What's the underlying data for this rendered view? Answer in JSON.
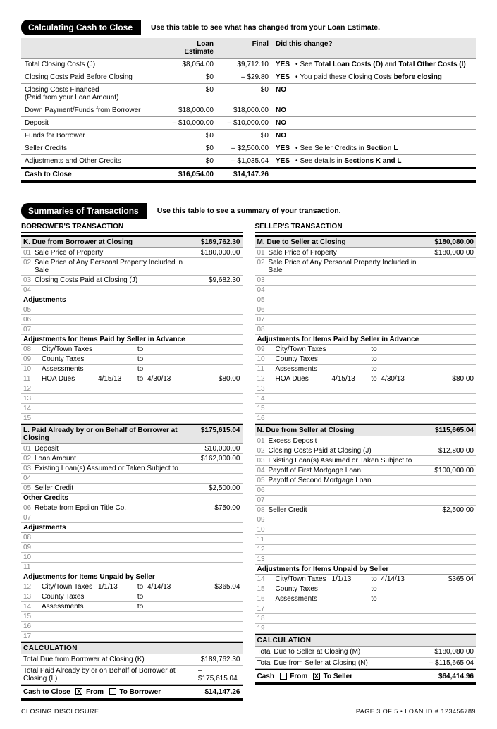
{
  "section1": {
    "title": "Calculating Cash to Close",
    "subtitle": "Use this table to see what has changed from your Loan Estimate.",
    "headers": {
      "c1": "Loan Estimate",
      "c2": "Final",
      "c3": "Did this change?"
    },
    "rows": [
      {
        "label": "Total Closing Costs (J)",
        "le": "$8,054.00",
        "fin": "$9,712.10",
        "yn": "YES",
        "note": "See Total Loan Costs (D) and Total Other Costs (I)",
        "bold_note": true
      },
      {
        "label": "Closing Costs Paid Before Closing",
        "le": "$0",
        "fin": "– $29.80",
        "yn": "YES",
        "note": "You paid these Closing Costs before closing",
        "bold_before": true
      },
      {
        "label": "Closing Costs Financed\n(Paid from your Loan Amount)",
        "le": "$0",
        "fin": "$0",
        "yn": "NO",
        "note": ""
      },
      {
        "label": "Down Payment/Funds from Borrower",
        "le": "$18,000.00",
        "fin": "$18,000.00",
        "yn": "NO",
        "note": ""
      },
      {
        "label": "Deposit",
        "le": "– $10,000.00",
        "fin": "– $10,000.00",
        "yn": "NO",
        "note": ""
      },
      {
        "label": "Funds for Borrower",
        "le": "$0",
        "fin": "$0",
        "yn": "NO",
        "note": ""
      },
      {
        "label": "Seller Credits",
        "le": "$0",
        "fin": "– $2,500.00",
        "yn": "YES",
        "note": "See Seller Credits in Section L",
        "bold_section": true
      },
      {
        "label": "Adjustments and Other Credits",
        "le": "$0",
        "fin": "– $1,035.04",
        "yn": "YES",
        "note": "See details in Sections K and L",
        "bold_sections": true
      }
    ],
    "total": {
      "label": "Cash to Close",
      "le": "$16,054.00",
      "fin": "$14,147.26"
    }
  },
  "section2": {
    "title": "Summaries of Transactions",
    "subtitle": "Use this table to see a summary of your transaction.",
    "borrower": {
      "title": "BORROWER'S TRANSACTION",
      "K": {
        "title": "K. Due from Borrower at Closing",
        "amt": "$189,762.30",
        "lines": [
          {
            "n": "01",
            "lbl": "Sale Price of Property",
            "amt": "$180,000.00"
          },
          {
            "n": "02",
            "lbl": "Sale Price of Any Personal Property Included in Sale",
            "amt": ""
          },
          {
            "n": "03",
            "lbl": "Closing Costs Paid at Closing (J)",
            "amt": "$9,682.30"
          },
          {
            "n": "04",
            "lbl": "",
            "amt": ""
          }
        ],
        "adj_title": "Adjustments",
        "adj": [
          {
            "n": "05"
          },
          {
            "n": "06"
          },
          {
            "n": "07"
          }
        ],
        "adv_title": "Adjustments for Items Paid by Seller in Advance",
        "adv": [
          {
            "n": "08",
            "lbl": "City/Town Taxes",
            "d1": "",
            "to": "to",
            "d2": "",
            "amt": ""
          },
          {
            "n": "09",
            "lbl": "County Taxes",
            "d1": "",
            "to": "to",
            "d2": "",
            "amt": ""
          },
          {
            "n": "10",
            "lbl": "Assessments",
            "d1": "",
            "to": "to",
            "d2": "",
            "amt": ""
          },
          {
            "n": "11",
            "lbl": "HOA Dues",
            "d1": "4/15/13",
            "to": "to",
            "d2": "4/30/13",
            "amt": "$80.00"
          },
          {
            "n": "12"
          },
          {
            "n": "13"
          },
          {
            "n": "14"
          },
          {
            "n": "15"
          }
        ]
      },
      "L": {
        "title": "L. Paid Already by or on Behalf of Borrower at Closing",
        "amt": "$175,615.04",
        "lines": [
          {
            "n": "01",
            "lbl": "Deposit",
            "amt": "$10,000.00"
          },
          {
            "n": "02",
            "lbl": "Loan Amount",
            "amt": "$162,000.00"
          },
          {
            "n": "03",
            "lbl": "Existing Loan(s) Assumed or Taken Subject to",
            "amt": ""
          },
          {
            "n": "04",
            "lbl": "",
            "amt": ""
          },
          {
            "n": "05",
            "lbl": "Seller Credit",
            "amt": "$2,500.00"
          }
        ],
        "other_title": "Other Credits",
        "other": [
          {
            "n": "06",
            "lbl": "Rebate from Epsilon Title Co.",
            "amt": "$750.00"
          },
          {
            "n": "07",
            "lbl": "",
            "amt": ""
          }
        ],
        "adj_title": "Adjustments",
        "adj": [
          {
            "n": "08"
          },
          {
            "n": "09"
          },
          {
            "n": "10"
          },
          {
            "n": "11"
          }
        ],
        "unp_title": "Adjustments for Items Unpaid by Seller",
        "unp": [
          {
            "n": "12",
            "lbl": "City/Town Taxes",
            "d1": "1/1/13",
            "to": "to",
            "d2": "4/14/13",
            "amt": "$365.04"
          },
          {
            "n": "13",
            "lbl": "County Taxes",
            "d1": "",
            "to": "to",
            "d2": "",
            "amt": ""
          },
          {
            "n": "14",
            "lbl": "Assessments",
            "d1": "",
            "to": "to",
            "d2": "",
            "amt": ""
          },
          {
            "n": "15"
          },
          {
            "n": "16"
          },
          {
            "n": "17"
          }
        ]
      },
      "calc": {
        "title": "CALCULATION",
        "r1": {
          "lbl": "Total Due from Borrower at Closing (K)",
          "amt": "$189,762.30"
        },
        "r2": {
          "lbl": "Total Paid Already by or on Behalf of Borrower at Closing (L)",
          "amt": "– $175,615.04"
        },
        "total_lbl": "Cash to Close",
        "from": "From",
        "to": "To Borrower",
        "amt": "$14,147.26",
        "from_checked": true
      }
    },
    "seller": {
      "title": "SELLER'S TRANSACTION",
      "M": {
        "title": "M. Due to Seller at Closing",
        "amt": "$180,080.00",
        "lines": [
          {
            "n": "01",
            "lbl": "Sale Price of Property",
            "amt": "$180,000.00"
          },
          {
            "n": "02",
            "lbl": "Sale Price of Any Personal Property Included in Sale",
            "amt": ""
          },
          {
            "n": "03",
            "lbl": "",
            "amt": ""
          },
          {
            "n": "04",
            "lbl": "",
            "amt": ""
          },
          {
            "n": "05",
            "lbl": "",
            "amt": ""
          },
          {
            "n": "06",
            "lbl": "",
            "amt": ""
          },
          {
            "n": "07",
            "lbl": "",
            "amt": ""
          },
          {
            "n": "08",
            "lbl": "",
            "amt": ""
          }
        ],
        "adv_title": "Adjustments for Items Paid by Seller in Advance",
        "adv": [
          {
            "n": "09",
            "lbl": "City/Town Taxes",
            "d1": "",
            "to": "to",
            "d2": "",
            "amt": ""
          },
          {
            "n": "10",
            "lbl": "County Taxes",
            "d1": "",
            "to": "to",
            "d2": "",
            "amt": ""
          },
          {
            "n": "11",
            "lbl": "Assessments",
            "d1": "",
            "to": "to",
            "d2": "",
            "amt": ""
          },
          {
            "n": "12",
            "lbl": "HOA Dues",
            "d1": "4/15/13",
            "to": "to",
            "d2": "4/30/13",
            "amt": "$80.00"
          },
          {
            "n": "13"
          },
          {
            "n": "14"
          },
          {
            "n": "15"
          },
          {
            "n": "16"
          }
        ]
      },
      "N": {
        "title": "N. Due from Seller at Closing",
        "amt": "$115,665.04",
        "lines": [
          {
            "n": "01",
            "lbl": "Excess Deposit",
            "amt": ""
          },
          {
            "n": "02",
            "lbl": "Closing Costs Paid at Closing (J)",
            "amt": "$12,800.00"
          },
          {
            "n": "03",
            "lbl": "Existing Loan(s) Assumed or Taken Subject to",
            "amt": ""
          },
          {
            "n": "04",
            "lbl": "Payoff of First Mortgage Loan",
            "amt": "$100,000.00"
          },
          {
            "n": "05",
            "lbl": "Payoff of Second Mortgage Loan",
            "amt": ""
          },
          {
            "n": "06",
            "lbl": "",
            "amt": ""
          },
          {
            "n": "07",
            "lbl": "",
            "amt": ""
          },
          {
            "n": "08",
            "lbl": "Seller Credit",
            "amt": "$2,500.00"
          },
          {
            "n": "09",
            "lbl": "",
            "amt": ""
          },
          {
            "n": "10",
            "lbl": "",
            "amt": ""
          },
          {
            "n": "11",
            "lbl": "",
            "amt": ""
          },
          {
            "n": "12",
            "lbl": "",
            "amt": ""
          },
          {
            "n": "13",
            "lbl": "",
            "amt": ""
          }
        ],
        "unp_title": "Adjustments for Items Unpaid by Seller",
        "unp": [
          {
            "n": "14",
            "lbl": "City/Town Taxes",
            "d1": "1/1/13",
            "to": "to",
            "d2": "4/14/13",
            "amt": "$365.04"
          },
          {
            "n": "15",
            "lbl": "County Taxes",
            "d1": "",
            "to": "to",
            "d2": "",
            "amt": ""
          },
          {
            "n": "16",
            "lbl": "Assessments",
            "d1": "",
            "to": "to",
            "d2": "",
            "amt": ""
          },
          {
            "n": "17"
          },
          {
            "n": "18"
          },
          {
            "n": "19"
          }
        ]
      },
      "calc": {
        "title": "CALCULATION",
        "r1": {
          "lbl": "Total Due to Seller at Closing (M)",
          "amt": "$180,080.00"
        },
        "r2": {
          "lbl": "Total Due from Seller at Closing (N)",
          "amt": "– $115,665.04"
        },
        "total_lbl": "Cash",
        "from": "From",
        "to": "To Seller",
        "amt": "$64,414.96",
        "to_checked": true
      }
    }
  },
  "footer": {
    "left": "CLOSING DISCLOSURE",
    "right": "PAGE 3 OF 5 • LOAN ID # 123456789"
  }
}
